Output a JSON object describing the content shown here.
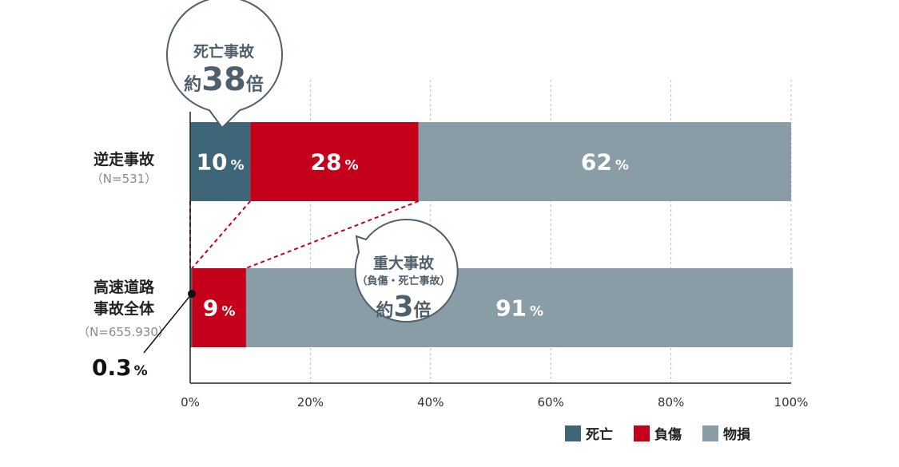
{
  "chart_data": {
    "type": "bar",
    "orientation": "horizontal",
    "stacked": true,
    "xlim": [
      0,
      100
    ],
    "x_ticks": [
      "0%",
      "20%",
      "40%",
      "60%",
      "80%",
      "100%"
    ],
    "categories": [
      {
        "label": "逆走事故",
        "sublabel": "（N=531）"
      },
      {
        "label_lines": [
          "高速道路",
          "事故全体"
        ],
        "sublabel": "（N=655.930）"
      }
    ],
    "series": [
      {
        "name": "死亡",
        "color": "#3f6579",
        "values": [
          10,
          0.3
        ]
      },
      {
        "name": "負傷",
        "color": "#c4001b",
        "values": [
          28,
          9
        ]
      },
      {
        "name": "物損",
        "color": "#8a9ca6",
        "values": [
          62,
          91
        ]
      }
    ],
    "segment_labels": [
      [
        {
          "num": "10",
          "pct": "%"
        },
        {
          "num": "28",
          "pct": "%"
        },
        {
          "num": "62",
          "pct": "%"
        }
      ],
      [
        null,
        {
          "num": "9",
          "pct": "%"
        },
        {
          "num": "91",
          "pct": "%"
        }
      ]
    ],
    "outside_label": {
      "num": "0.3",
      "pct": "%"
    },
    "callouts": [
      {
        "lines": [
          "死亡事故",
          "約",
          "38",
          "倍"
        ]
      },
      {
        "lines": [
          "重大事故",
          "（負傷・死亡事故）",
          "約",
          "3",
          "倍"
        ]
      }
    ],
    "grid": "dashed-vertical",
    "legend_position": "bottom-right"
  }
}
